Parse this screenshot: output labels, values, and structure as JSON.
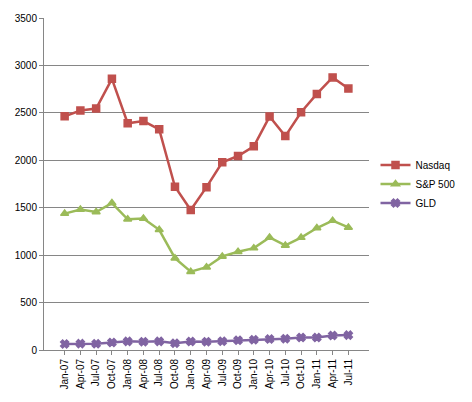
{
  "chart_data": {
    "type": "line",
    "categories": [
      "Jan-07",
      "Apr-07",
      "Jul-07",
      "Oct-07",
      "Jan-08",
      "Apr-08",
      "Jul-08",
      "Oct-08",
      "Jan-09",
      "Apr-09",
      "Jul-09",
      "Oct-09",
      "Jan-10",
      "Apr-10",
      "Jul-10",
      "Oct-10",
      "Jan-11",
      "Apr-11",
      "Jul-11"
    ],
    "series": [
      {
        "name": "Nasdaq",
        "color": "#c0504d",
        "marker": "square",
        "values": [
          2463,
          2525,
          2546,
          2859,
          2390,
          2413,
          2326,
          1721,
          1476,
          1717,
          1979,
          2045,
          2147,
          2461,
          2255,
          2507,
          2700,
          2874,
          2756
        ]
      },
      {
        "name": "S&P 500",
        "color": "#9bbb59",
        "marker": "triangle",
        "values": [
          1438,
          1482,
          1455,
          1549,
          1378,
          1386,
          1267,
          968,
          826,
          873,
          987,
          1036,
          1074,
          1187,
          1102,
          1185,
          1286,
          1364,
          1292
        ]
      },
      {
        "name": "GLD",
        "color": "#8064a2",
        "marker": "x",
        "values": [
          64,
          67,
          65,
          79,
          91,
          88,
          91,
          72,
          90,
          88,
          93,
          102,
          108,
          115,
          118,
          132,
          132,
          152,
          157
        ]
      }
    ],
    "ylim": [
      0,
      3500
    ],
    "yticks": [
      0,
      500,
      1000,
      1500,
      2000,
      2500,
      3000,
      3500
    ],
    "grid": true,
    "legend": "right"
  }
}
